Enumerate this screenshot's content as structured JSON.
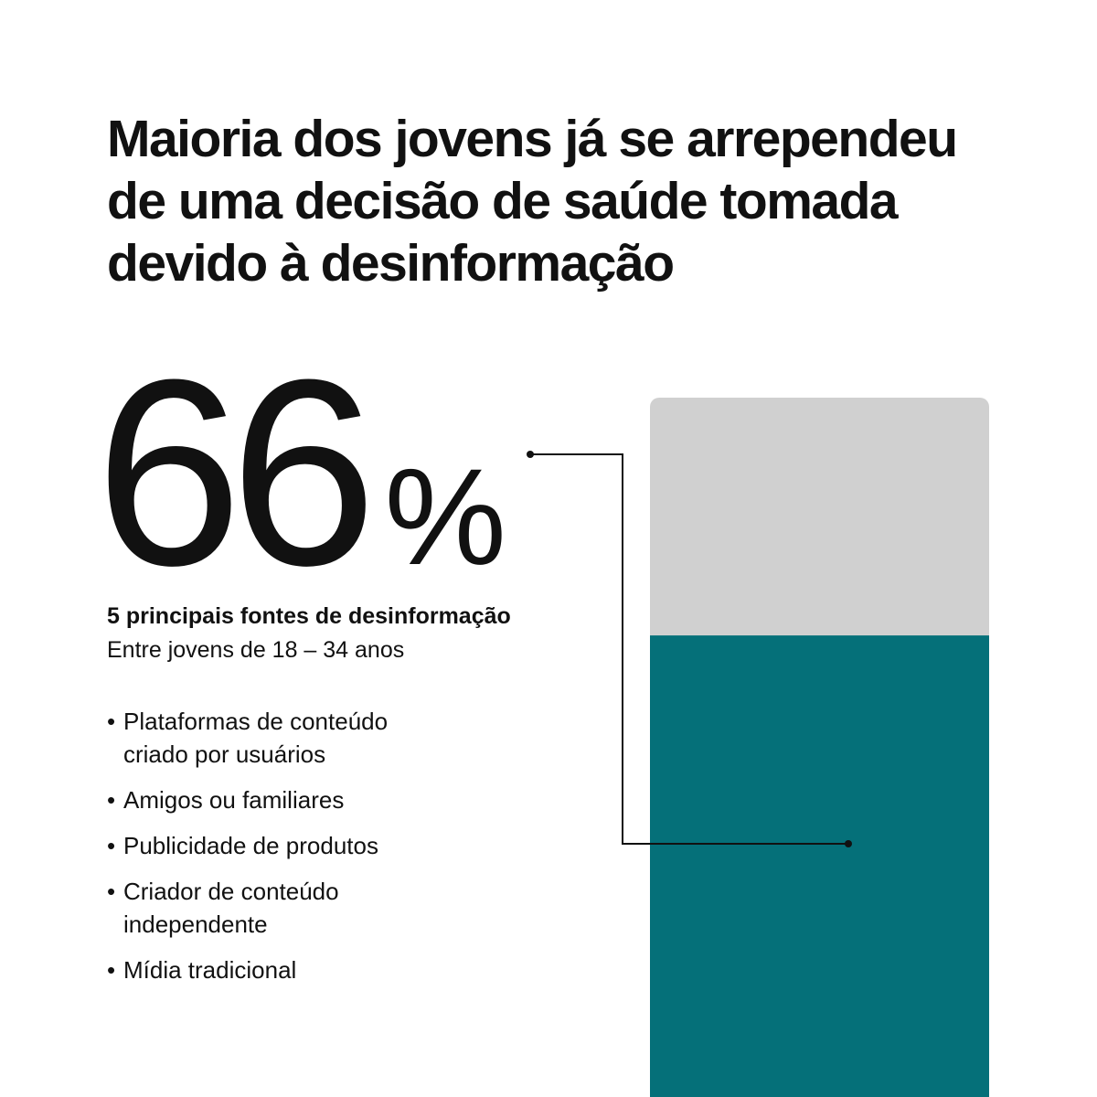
{
  "chart_data": {
    "type": "bar",
    "title": "Maioria dos jovens já se arrependeu de uma decisão de saúde tomada devido à desinformação",
    "subtitle": "5 principais fontes de desinformação",
    "note": "Entre jovens de 18 – 34 anos",
    "annotations": [
      "Plataformas de conteúdo criado por usuários",
      "Amigos ou familiares",
      "Publicidade de produtos",
      "Criador de conteúdo independente",
      "Mídia tradicional"
    ],
    "values": [
      66
    ],
    "value_labels": [
      "66%"
    ],
    "ylim": [
      0,
      100
    ],
    "color": "#057079",
    "track_color": "#d0d0d0"
  }
}
